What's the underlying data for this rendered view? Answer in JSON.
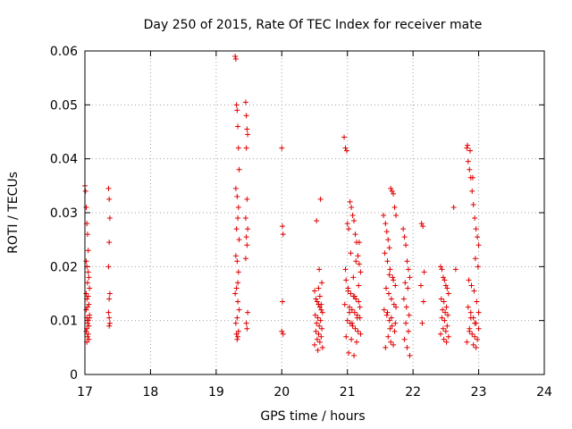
{
  "chart_data": {
    "type": "scatter",
    "title": "Day 250 of 2015, Rate Of TEC Index for receiver mate",
    "xlabel": "GPS time / hours",
    "ylabel": "ROTI / TECUs",
    "xlim": [
      17,
      24
    ],
    "ylim": [
      0,
      0.06
    ],
    "x_ticks": [
      17,
      18,
      19,
      20,
      21,
      22,
      23,
      24
    ],
    "x_tick_labels": [
      "17",
      "18",
      "19",
      "20",
      "21",
      "22",
      "23",
      "24"
    ],
    "y_ticks": [
      0,
      0.01,
      0.02,
      0.03,
      0.04,
      0.05,
      0.06
    ],
    "y_tick_labels": [
      "0",
      "0.01",
      "0.02",
      "0.03",
      "0.04",
      "0.05",
      "0.06"
    ],
    "grid": true,
    "marker": "+",
    "color": "#e00000",
    "series": [
      {
        "name": "mate",
        "x": [
          17.0,
          17.01,
          17.02,
          17.03,
          17.04,
          17.05,
          17.02,
          17.03,
          17.05,
          17.06,
          17.04,
          17.07,
          17.02,
          17.05,
          17.03,
          17.06,
          17.04,
          17.02,
          17.07,
          17.03,
          17.05,
          17.04,
          17.06,
          17.03,
          17.02,
          17.05,
          17.04,
          17.06,
          17.03,
          17.07,
          17.36,
          17.37,
          17.38,
          17.37,
          17.36,
          17.38,
          17.37,
          17.36,
          17.37,
          17.38,
          17.37,
          19.29,
          19.3,
          19.31,
          19.32,
          19.33,
          19.34,
          19.35,
          19.3,
          19.32,
          19.34,
          19.33,
          19.31,
          19.35,
          19.3,
          19.32,
          19.34,
          19.33,
          19.31,
          19.29,
          19.33,
          19.35,
          19.32,
          19.3,
          19.34,
          19.31,
          19.33,
          19.32,
          19.45,
          19.46,
          19.47,
          19.48,
          19.46,
          19.47,
          19.45,
          19.48,
          19.46,
          19.47,
          19.45,
          19.48,
          19.46,
          19.47,
          20.0,
          20.01,
          20.02,
          20.01,
          20.0,
          20.02,
          20.5,
          20.52,
          20.54,
          20.56,
          20.58,
          20.6,
          20.62,
          20.51,
          20.55,
          20.59,
          20.53,
          20.57,
          20.61,
          20.52,
          20.56,
          20.6,
          20.54,
          20.58,
          20.5,
          20.62,
          20.55,
          20.59,
          20.53,
          20.57,
          20.61,
          20.56,
          20.58,
          20.6,
          20.95,
          20.97,
          20.99,
          21.0,
          21.02,
          21.04,
          21.06,
          21.08,
          21.1,
          21.12,
          21.14,
          21.16,
          21.18,
          21.2,
          20.98,
          21.01,
          21.05,
          21.09,
          21.13,
          21.17,
          20.96,
          21.03,
          21.07,
          21.11,
          21.15,
          21.19,
          21.0,
          21.04,
          21.08,
          21.12,
          21.16,
          21.2,
          20.98,
          21.06,
          21.14,
          21.02,
          21.1,
          21.18,
          21.05,
          21.13,
          20.97,
          21.09,
          21.17,
          21.01,
          21.11,
          21.19,
          21.03,
          21.15,
          21.07,
          21.55,
          21.58,
          21.6,
          21.62,
          21.64,
          21.66,
          21.68,
          21.7,
          21.72,
          21.74,
          21.57,
          21.61,
          21.65,
          21.69,
          21.73,
          21.59,
          21.63,
          21.67,
          21.71,
          21.56,
          21.6,
          21.64,
          21.68,
          21.72,
          21.62,
          21.66,
          21.7,
          21.58,
          21.64,
          21.7,
          21.74,
          21.61,
          21.67,
          21.73,
          21.65,
          21.85,
          21.87,
          21.89,
          21.91,
          21.93,
          21.95,
          21.88,
          21.92,
          21.86,
          21.9,
          21.94,
          21.89,
          21.93,
          21.87,
          21.91,
          21.95,
          22.13,
          22.15,
          22.17,
          22.12,
          22.16,
          22.14,
          22.42,
          22.44,
          22.46,
          22.48,
          22.5,
          22.52,
          22.54,
          22.43,
          22.47,
          22.51,
          22.45,
          22.49,
          22.53,
          22.44,
          22.48,
          22.52,
          22.46,
          22.5,
          22.42,
          22.54,
          22.47,
          22.51,
          22.62,
          22.65,
          22.82,
          22.84,
          22.86,
          22.88,
          22.9,
          22.92,
          22.94,
          22.96,
          22.98,
          23.0,
          22.83,
          22.87,
          22.91,
          22.95,
          22.99,
          22.85,
          22.89,
          22.93,
          22.97,
          22.84,
          22.88,
          22.92,
          22.96,
          23.0,
          22.86,
          22.9,
          22.94,
          22.98,
          22.82,
          22.92,
          22.96,
          23.0,
          22.88,
          22.94,
          22.86
        ],
        "y": [
          0.035,
          0.034,
          0.031,
          0.028,
          0.026,
          0.023,
          0.021,
          0.02,
          0.019,
          0.018,
          0.017,
          0.016,
          0.015,
          0.0145,
          0.014,
          0.013,
          0.0125,
          0.012,
          0.011,
          0.0105,
          0.01,
          0.0095,
          0.009,
          0.0085,
          0.008,
          0.0075,
          0.007,
          0.0065,
          0.006,
          0.0105,
          0.0345,
          0.0325,
          0.029,
          0.0245,
          0.02,
          0.015,
          0.014,
          0.0115,
          0.0105,
          0.0095,
          0.009,
          0.059,
          0.0585,
          0.05,
          0.049,
          0.046,
          0.042,
          0.038,
          0.0345,
          0.033,
          0.031,
          0.029,
          0.027,
          0.025,
          0.022,
          0.021,
          0.019,
          0.017,
          0.016,
          0.015,
          0.0135,
          0.012,
          0.0105,
          0.0095,
          0.008,
          0.0075,
          0.007,
          0.0065,
          0.0505,
          0.048,
          0.0455,
          0.0445,
          0.042,
          0.0325,
          0.029,
          0.027,
          0.0255,
          0.024,
          0.0215,
          0.0115,
          0.0095,
          0.0085,
          0.042,
          0.0275,
          0.026,
          0.0135,
          0.008,
          0.0075,
          0.0155,
          0.014,
          0.0135,
          0.013,
          0.0125,
          0.012,
          0.0115,
          0.011,
          0.0105,
          0.01,
          0.0095,
          0.009,
          0.0085,
          0.008,
          0.0075,
          0.007,
          0.0065,
          0.006,
          0.0055,
          0.005,
          0.0045,
          0.0325,
          0.0285,
          0.0195,
          0.017,
          0.016,
          0.0145,
          0.013,
          0.044,
          0.042,
          0.0415,
          0.028,
          0.027,
          0.032,
          0.031,
          0.0295,
          0.0285,
          0.026,
          0.0245,
          0.022,
          0.0205,
          0.019,
          0.0175,
          0.016,
          0.015,
          0.0145,
          0.014,
          0.0135,
          0.013,
          0.0125,
          0.012,
          0.0115,
          0.011,
          0.0105,
          0.01,
          0.0095,
          0.009,
          0.0085,
          0.008,
          0.0075,
          0.007,
          0.0065,
          0.006,
          0.004,
          0.0035,
          0.0245,
          0.0225,
          0.021,
          0.0195,
          0.018,
          0.0165,
          0.0155,
          0.0145,
          0.0125,
          0.0115,
          0.0105,
          0.0095,
          0.0295,
          0.028,
          0.0265,
          0.025,
          0.0235,
          0.0345,
          0.034,
          0.0335,
          0.031,
          0.0295,
          0.0225,
          0.021,
          0.0195,
          0.018,
          0.0165,
          0.016,
          0.015,
          0.014,
          0.013,
          0.012,
          0.011,
          0.01,
          0.009,
          0.008,
          0.007,
          0.006,
          0.0055,
          0.005,
          0.0185,
          0.0175,
          0.0125,
          0.0115,
          0.0105,
          0.0095,
          0.0085,
          0.027,
          0.0255,
          0.024,
          0.021,
          0.0195,
          0.018,
          0.017,
          0.016,
          0.014,
          0.0125,
          0.011,
          0.0095,
          0.008,
          0.0065,
          0.005,
          0.0035,
          0.028,
          0.0275,
          0.019,
          0.0165,
          0.0135,
          0.0095,
          0.02,
          0.0195,
          0.018,
          0.0175,
          0.0165,
          0.016,
          0.015,
          0.014,
          0.0135,
          0.0125,
          0.012,
          0.0115,
          0.011,
          0.0105,
          0.01,
          0.009,
          0.0085,
          0.008,
          0.0075,
          0.007,
          0.0065,
          0.006,
          0.031,
          0.0195,
          0.042,
          0.0395,
          0.038,
          0.0365,
          0.034,
          0.0315,
          0.029,
          0.027,
          0.0255,
          0.024,
          0.0425,
          0.0415,
          0.0365,
          0.0215,
          0.02,
          0.0175,
          0.0165,
          0.0155,
          0.0135,
          0.0125,
          0.0115,
          0.0105,
          0.0095,
          0.0085,
          0.008,
          0.0075,
          0.007,
          0.0065,
          0.006,
          0.0055,
          0.005,
          0.0115,
          0.0105,
          0.0095,
          0.0085
        ]
      }
    ]
  }
}
